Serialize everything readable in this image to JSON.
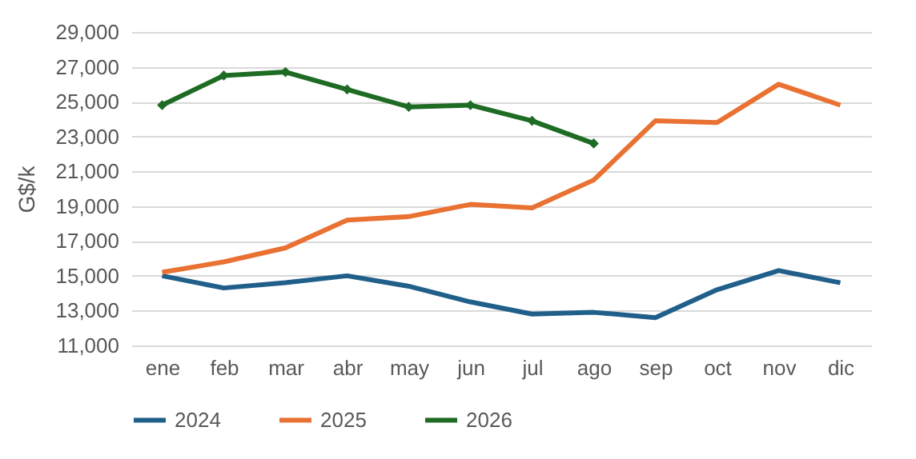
{
  "chart_data": {
    "type": "line",
    "ylabel": "G$/k",
    "categories": [
      "ene",
      "feb",
      "mar",
      "abr",
      "may",
      "jun",
      "jul",
      "ago",
      "sep",
      "oct",
      "nov",
      "dic"
    ],
    "series": [
      {
        "name": "2024",
        "color": "#215f8b",
        "marker": "none",
        "values": [
          15000,
          14300,
          14600,
          15000,
          14400,
          13500,
          12800,
          12900,
          12600,
          14200,
          15300,
          14600
        ]
      },
      {
        "name": "2025",
        "color": "#e97132",
        "marker": "none",
        "values": [
          15200,
          15800,
          16600,
          18200,
          18400,
          19100,
          18900,
          20500,
          23900,
          23800,
          26000,
          24800
        ]
      },
      {
        "name": "2026",
        "color": "#1e6b24",
        "marker": "diamond",
        "values": [
          24800,
          26500,
          26700,
          25700,
          24700,
          24800,
          23900,
          22600,
          null,
          null,
          null,
          null
        ]
      }
    ],
    "ylim": [
      11000,
      29000
    ],
    "yticks": [
      {
        "value": 11000,
        "label": "11,000"
      },
      {
        "value": 13000,
        "label": "13,000"
      },
      {
        "value": 15000,
        "label": "15,000"
      },
      {
        "value": 17000,
        "label": "17,000"
      },
      {
        "value": 19000,
        "label": "19,000"
      },
      {
        "value": 21000,
        "label": "21,000"
      },
      {
        "value": 23000,
        "label": "23,000"
      },
      {
        "value": 25000,
        "label": "25,000"
      },
      {
        "value": 27000,
        "label": "27,000"
      },
      {
        "value": 29000,
        "label": "29,000"
      }
    ],
    "grid": "y",
    "legend": "bottom"
  }
}
